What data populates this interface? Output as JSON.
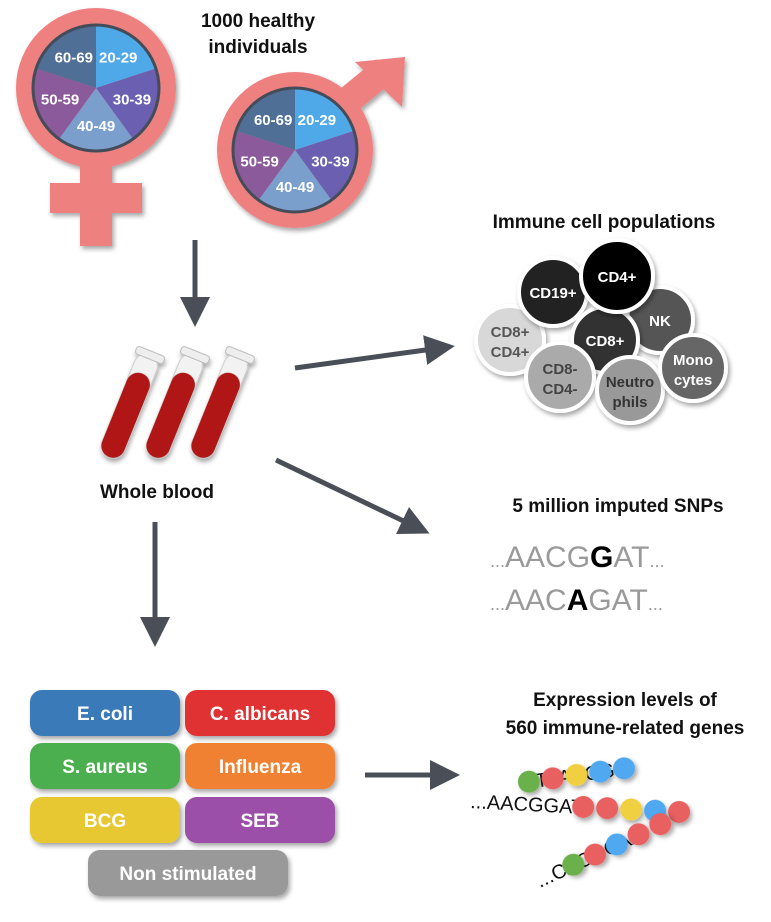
{
  "population": {
    "title_line1": "1000 healthy",
    "title_line2": "individuals",
    "age_groups": [
      "20-29",
      "30-39",
      "40-49",
      "50-59",
      "60-69"
    ],
    "age_colors": [
      "#4fa8e8",
      "#6a5fb0",
      "#7b9fcc",
      "#8a5a9a",
      "#4f6f96"
    ],
    "symbol_color": "#ee8080"
  },
  "blood": {
    "label": "Whole blood",
    "tube_color": "#b01818"
  },
  "cells": {
    "title": "Immune cell populations",
    "items": [
      {
        "label": "CD19+",
        "fill": "#222222",
        "text": "#ffffff"
      },
      {
        "label": "CD4+",
        "fill": "#000000",
        "text": "#ffffff"
      },
      {
        "label": "NK",
        "fill": "#555555",
        "text": "#ffffff"
      },
      {
        "label": "CD8+",
        "fill": "#333333",
        "text": "#ffffff"
      },
      {
        "label": "CD8+ CD4+",
        "line1": "CD8+",
        "line2": "CD4+",
        "fill": "#d8d8d8",
        "text": "#555555"
      },
      {
        "label": "CD8- CD4-",
        "line1": "CD8-",
        "line2": "CD4-",
        "fill": "#aaaaaa",
        "text": "#444444"
      },
      {
        "label": "Neutro phils",
        "line1": "Neutro",
        "line2": "phils",
        "fill": "#999999",
        "text": "#333333"
      },
      {
        "label": "Mono cytes",
        "line1": "Mono",
        "line2": "cytes",
        "fill": "#666666",
        "text": "#ffffff"
      }
    ]
  },
  "snps": {
    "title": "5 million imputed SNPs",
    "seq1": {
      "pre": "AACG",
      "snp": "G",
      "post": "AT"
    },
    "seq2": {
      "pre": "AAC",
      "snp": "A",
      "post": "GAT"
    },
    "dots": "..."
  },
  "stimuli": [
    {
      "label": "E. coli",
      "color": "#3a7ab8"
    },
    {
      "label": "C. albicans",
      "color": "#e03030"
    },
    {
      "label": "S. aureus",
      "color": "#4caf50"
    },
    {
      "label": "Influenza",
      "color": "#f08030"
    },
    {
      "label": "BCG",
      "color": "#e8c830"
    },
    {
      "label": "SEB",
      "color": "#9b4fa8"
    },
    {
      "label": "Non stimulated",
      "color": "#999999"
    }
  ],
  "expression": {
    "title_line1": "Expression levels of",
    "title_line2": "560 immune-related genes",
    "sequences": [
      {
        "text": "...TTAACGG",
        "dots": [
          "#6ab04c",
          "#e86060",
          "#f0d040",
          "#50a8f0",
          "#50a8f0"
        ]
      },
      {
        "text": "...AACGGAT",
        "dots": [
          "#e86060",
          "#e86060",
          "#f0d040",
          "#50a8f0",
          "#e86060"
        ]
      },
      {
        "text": "...CACGCAA",
        "dots": [
          "#6ab04c",
          "#e86060",
          "#50a8f0",
          "#e86060",
          "#e86060"
        ]
      }
    ]
  }
}
